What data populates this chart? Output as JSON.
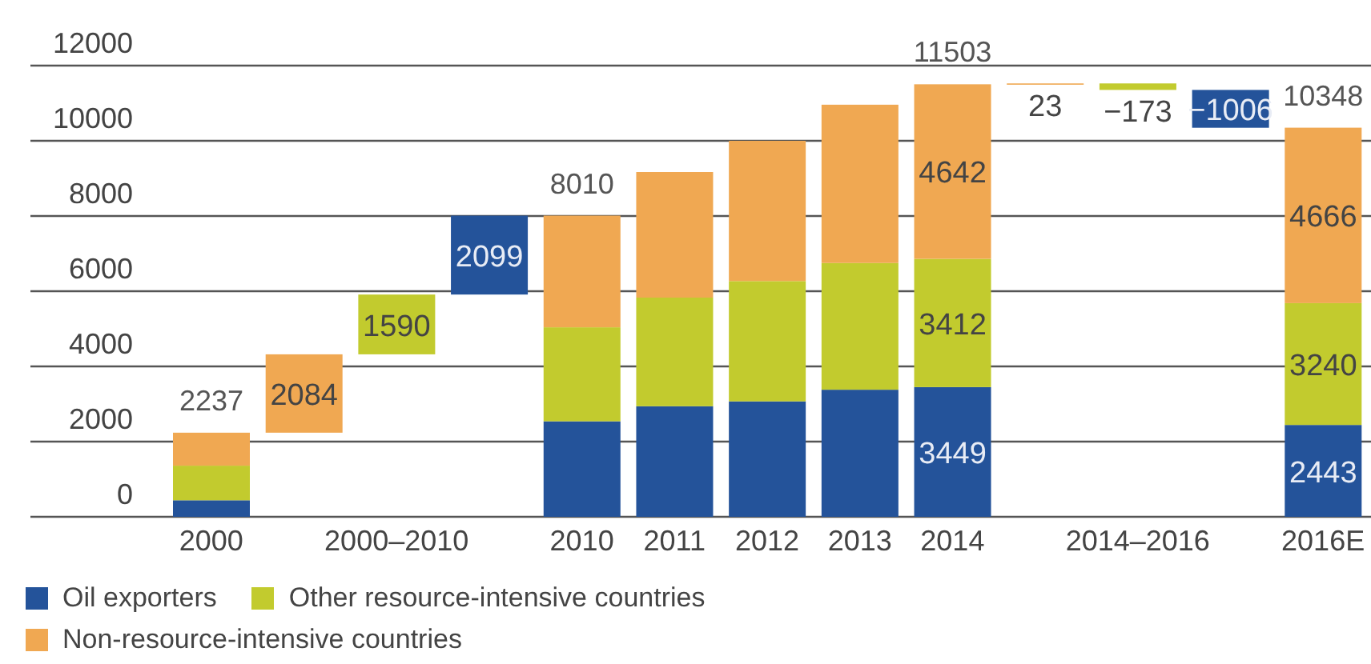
{
  "chart_data": {
    "type": "bar",
    "stacked": true,
    "categories": [
      "2000",
      null,
      "2000–2010",
      null,
      "2010",
      "2011",
      "2012",
      "2013",
      "2014",
      null,
      "2014–2016",
      null,
      "2016E"
    ],
    "series": [
      {
        "name": "Oil exporters",
        "color": "#24539a",
        "values": [
          440,
          null,
          null,
          2099,
          2540,
          2940,
          3070,
          3380,
          3449,
          null,
          null,
          -1006,
          2443
        ],
        "base": [
          null,
          null,
          null,
          5911,
          null,
          null,
          null,
          null,
          null,
          null,
          null,
          11353,
          null
        ],
        "value_labels": [
          null,
          null,
          null,
          "2099",
          null,
          null,
          null,
          null,
          "3449",
          null,
          null,
          "−1006",
          "2443"
        ]
      },
      {
        "name": "Other resource-intensive countries",
        "color": "#c2cb2e",
        "values": [
          920,
          null,
          1590,
          null,
          2500,
          2890,
          3200,
          3370,
          3412,
          null,
          -173,
          null,
          3240
        ],
        "base": [
          null,
          null,
          4321,
          null,
          null,
          null,
          null,
          null,
          null,
          null,
          11526,
          null,
          null
        ],
        "value_labels": [
          null,
          null,
          "1590",
          null,
          null,
          null,
          null,
          null,
          "3412",
          null,
          "−173",
          null,
          "3240"
        ]
      },
      {
        "name": "Non-resource-intensive countries",
        "color": "#f0a852",
        "values": [
          877,
          2084,
          null,
          null,
          2970,
          3340,
          3730,
          4210,
          4642,
          23,
          null,
          null,
          4666
        ],
        "base": [
          null,
          2237,
          null,
          null,
          null,
          null,
          null,
          null,
          null,
          11503,
          null,
          null,
          null
        ],
        "value_labels": [
          null,
          "2084",
          null,
          null,
          null,
          null,
          null,
          null,
          "4642",
          "23",
          null,
          null,
          "4666"
        ]
      }
    ],
    "totals": [
      "2237",
      null,
      null,
      null,
      "8010",
      null,
      null,
      null,
      "11503",
      null,
      null,
      null,
      "10348"
    ],
    "ylim": [
      0,
      12000
    ],
    "yticks": [
      0,
      2000,
      4000,
      6000,
      8000,
      10000,
      12000
    ],
    "grid": "y",
    "legend": "bottom"
  }
}
